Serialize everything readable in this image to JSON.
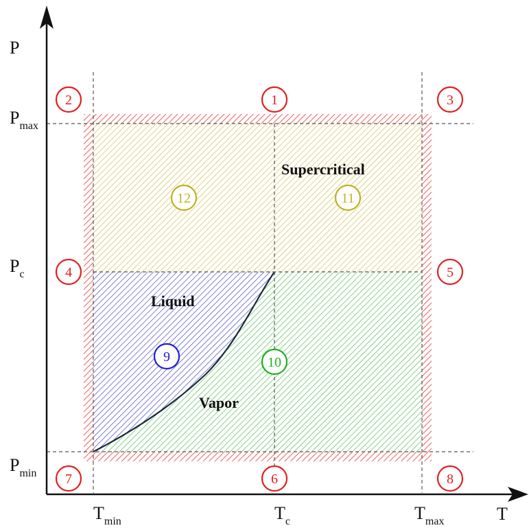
{
  "axes": {
    "x_label": "T",
    "y_label": "P",
    "x_ticks": [
      {
        "main": "T",
        "sub": "min"
      },
      {
        "main": "T",
        "sub": "c"
      },
      {
        "main": "T",
        "sub": "max"
      }
    ],
    "y_ticks": [
      {
        "main": "P",
        "sub": "max"
      },
      {
        "main": "P",
        "sub": "c"
      },
      {
        "main": "P",
        "sub": "min"
      }
    ]
  },
  "regions": {
    "supercritical": "Supercritical",
    "liquid": "Liquid",
    "vapor": "Vapor"
  },
  "zones": [
    {
      "id": "1",
      "color": "#e02020"
    },
    {
      "id": "2",
      "color": "#e02020"
    },
    {
      "id": "3",
      "color": "#e02020"
    },
    {
      "id": "4",
      "color": "#e02020"
    },
    {
      "id": "5",
      "color": "#e02020"
    },
    {
      "id": "6",
      "color": "#e02020"
    },
    {
      "id": "7",
      "color": "#e02020"
    },
    {
      "id": "8",
      "color": "#e02020"
    },
    {
      "id": "9",
      "color": "#2020d0"
    },
    {
      "id": "10",
      "color": "#20b020"
    },
    {
      "id": "11",
      "color": "#c0b020"
    },
    {
      "id": "12",
      "color": "#c0b020"
    }
  ],
  "colors": {
    "border_hatch": "#f08080",
    "supercritical_hatch": "#c8c040",
    "liquid_hatch": "#4040c0",
    "vapor_hatch": "#40c040",
    "saturation_curve": "#1a2a3a"
  }
}
